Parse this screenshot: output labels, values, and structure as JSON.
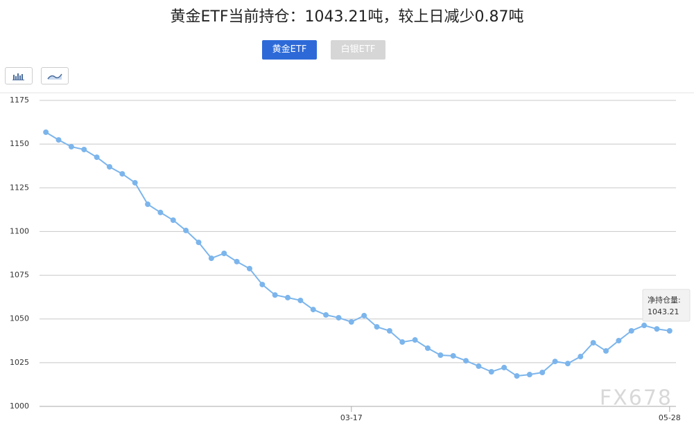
{
  "title": "黄金ETF当前持仓：1043.21吨，较上日减少0.87吨",
  "tabs": [
    "黄金ETF",
    "白银ETF"
  ],
  "tooltip_label": "净持仓量:",
  "watermark": "FX678",
  "chart_data": {
    "type": "line",
    "categories": [
      null,
      null,
      null,
      null,
      null,
      null,
      null,
      null,
      null,
      null,
      null,
      null,
      null,
      null,
      null,
      null,
      null,
      null,
      null,
      null,
      null,
      null,
      null,
      null,
      "03-17",
      null,
      null,
      null,
      null,
      null,
      null,
      null,
      null,
      null,
      null,
      null,
      null,
      null,
      null,
      null,
      null,
      null,
      null,
      null,
      null,
      null,
      null,
      null,
      null,
      "05-28"
    ],
    "series": [
      {
        "name": "净持仓量",
        "color": "#7cb5ec",
        "values": [
          1156.8,
          1152.4,
          1148.5,
          1146.9,
          1142.5,
          1137.0,
          1133.0,
          1127.9,
          1115.6,
          1110.9,
          1106.5,
          1100.6,
          1093.8,
          1084.7,
          1087.5,
          1082.8,
          1078.8,
          1069.7,
          1063.7,
          1062.2,
          1060.6,
          1055.4,
          1052.3,
          1050.7,
          1048.3,
          1051.9,
          1045.5,
          1043.2,
          1036.8,
          1038.0,
          1033.3,
          1029.3,
          1028.9,
          1026.1,
          1023.0,
          1019.8,
          1022.2,
          1017.4,
          1018.2,
          1019.4,
          1025.7,
          1024.5,
          1028.5,
          1036.4,
          1031.7,
          1037.6,
          1043.2,
          1046.3,
          1044.3,
          1043.21
        ]
      }
    ],
    "ylim": [
      1000,
      1175
    ],
    "yticks": [
      1000,
      1025,
      1050,
      1075,
      1100,
      1125,
      1150,
      1175
    ],
    "grid": true
  }
}
